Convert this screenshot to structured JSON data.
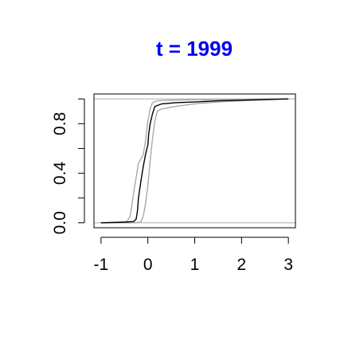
{
  "colors": {
    "title": "#0000ee",
    "main_series": "#000000",
    "band_series": "#a9a9a9",
    "reference_lines": "#bdbdbd"
  },
  "chart_data": {
    "type": "line",
    "title": "t = 1999",
    "xlabel": "",
    "ylabel": "",
    "xlim": [
      -1.15,
      3.15
    ],
    "ylim": [
      -0.04,
      1.04
    ],
    "x_ticks": [
      -1,
      0,
      1,
      2,
      3
    ],
    "x_tick_labels": [
      "-1",
      "0",
      "1",
      "2",
      "3"
    ],
    "y_ticks": [
      0.0,
      0.2,
      0.4,
      0.6,
      0.8,
      1.0
    ],
    "y_tick_labels": [
      "0.0",
      "",
      "0.4",
      "",
      "0.8",
      ""
    ],
    "reference_lines_y": [
      0,
      1
    ],
    "grid": false,
    "legend": "none",
    "series": [
      {
        "role": "main",
        "x": [
          -1.0,
          -0.5,
          -0.3,
          -0.25,
          -0.22,
          -0.2,
          -0.15,
          -0.1,
          -0.05,
          0.0,
          0.02,
          0.05,
          0.1,
          0.15,
          0.3,
          0.6,
          1.0,
          1.5,
          2.0,
          3.0
        ],
        "y": [
          0.0,
          0.005,
          0.01,
          0.03,
          0.1,
          0.2,
          0.33,
          0.45,
          0.55,
          0.63,
          0.72,
          0.8,
          0.88,
          0.94,
          0.96,
          0.97,
          0.975,
          0.985,
          0.99,
          1.0
        ]
      },
      {
        "role": "band-upper",
        "x": [
          -1.0,
          -0.6,
          -0.45,
          -0.38,
          -0.35,
          -0.3,
          -0.2,
          -0.1,
          -0.05,
          0.0,
          0.05,
          0.1,
          0.2,
          0.5,
          1.0,
          1.5,
          2.0,
          3.0
        ],
        "y": [
          0.0,
          0.005,
          0.01,
          0.05,
          0.12,
          0.25,
          0.48,
          0.55,
          0.66,
          0.82,
          0.92,
          0.97,
          0.985,
          0.99,
          0.993,
          0.995,
          0.997,
          1.0
        ]
      },
      {
        "role": "band-lower",
        "x": [
          -1.0,
          -0.3,
          -0.15,
          -0.1,
          -0.05,
          0.0,
          0.05,
          0.1,
          0.15,
          0.2,
          0.3,
          0.6,
          1.0,
          1.5,
          2.0,
          3.0
        ],
        "y": [
          0.0,
          0.0,
          0.005,
          0.05,
          0.15,
          0.3,
          0.5,
          0.68,
          0.82,
          0.9,
          0.92,
          0.94,
          0.96,
          0.975,
          0.985,
          1.0
        ]
      }
    ]
  }
}
